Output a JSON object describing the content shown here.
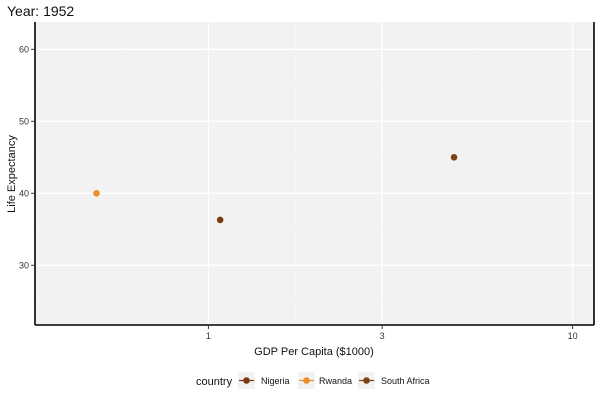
{
  "colors": {
    "panel_bg": "#f2f2f2",
    "grid_major": "#ffffff",
    "grid_minor": "#f7f7f7",
    "axis_line": "#000000",
    "legend_key_bg": "#f2f2f2"
  },
  "chart_data": {
    "type": "scatter",
    "title": "Year: 1952",
    "xlabel": "GDP Per Capita ($1000)",
    "ylabel": "Life Expectancy",
    "x_scale": "log10",
    "xlim": [
      0.334,
      11.45
    ],
    "ylim": [
      21.7,
      63.8
    ],
    "x_ticks": [
      1,
      3,
      10
    ],
    "x_tick_labels": [
      "1",
      "3",
      "10"
    ],
    "y_ticks": [
      30,
      40,
      50,
      60
    ],
    "y_tick_labels": [
      "30",
      "40",
      "50",
      "60"
    ],
    "grid": true,
    "legend": {
      "title": "country",
      "position": "bottom",
      "entries": [
        "Nigeria",
        "Rwanda",
        "South Africa"
      ]
    },
    "series": [
      {
        "name": "Nigeria",
        "color": "#7a3b12",
        "x": [
          1.077
        ],
        "y": [
          36.3
        ]
      },
      {
        "name": "Rwanda",
        "color": "#e8902a",
        "x": [
          0.493
        ],
        "y": [
          40.0
        ]
      },
      {
        "name": "South Africa",
        "color": "#7b4317",
        "x": [
          4.725
        ],
        "y": [
          45.0
        ]
      }
    ]
  }
}
